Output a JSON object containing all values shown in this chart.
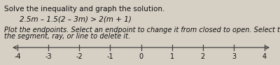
{
  "title_line1": "Solve the inequality and graph the solution.",
  "equation": "2.5m – 1.5(2 – 3m) > 2(m + 1)",
  "instruction": "Plot the endpoints. Select an endpoint to change it from closed to open. Select the middle of\nthe segment, ray, or line to delete it.",
  "x_min": -4,
  "x_max": 4,
  "tick_positions": [
    -4,
    -3,
    -2,
    -1,
    0,
    1,
    2,
    3,
    4
  ],
  "tick_labels": [
    "-4",
    "-3",
    "-2",
    "-1",
    "0",
    "1",
    "2",
    "3",
    "4"
  ],
  "bg_color": "#d6cfc4",
  "text_color": "#111111",
  "axis_color": "#444444",
  "title_fontsize": 7.5,
  "eq_fontsize": 7.5,
  "instr_fontsize": 7.0,
  "tick_fontsize": 7.0
}
